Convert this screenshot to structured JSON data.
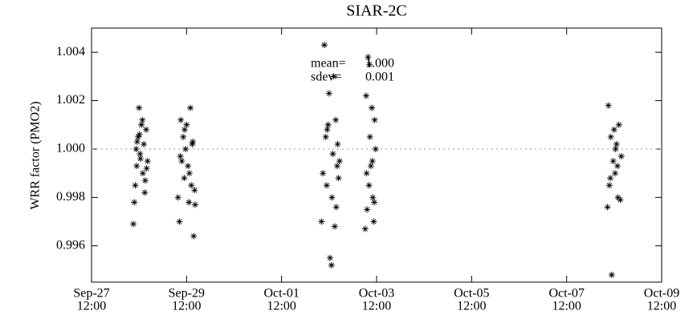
{
  "chart_data": {
    "type": "scatter",
    "title": "SIAR-2C",
    "y_label": "WRR factor (PMO2)",
    "annotations": [
      {
        "label": "mean=",
        "value": "1.000"
      },
      {
        "label": "sdev=",
        "value": "0.001"
      }
    ],
    "ref_line": 1.0,
    "color": "#000000",
    "xlim": [
      0,
      12
    ],
    "ylim": [
      0.9945,
      1.005
    ],
    "xticks": [
      {
        "value": 0,
        "label": [
          "Sep-27",
          "12:00"
        ]
      },
      {
        "value": 2,
        "label": [
          "Sep-29",
          "12:00"
        ]
      },
      {
        "value": 4,
        "label": [
          "Oct-01",
          "12:00"
        ]
      },
      {
        "value": 6,
        "label": [
          "Oct-03",
          "12:00"
        ]
      },
      {
        "value": 8,
        "label": [
          "Oct-05",
          "12:00"
        ]
      },
      {
        "value": 10,
        "label": [
          "Oct-07",
          "12:00"
        ]
      },
      {
        "value": 12,
        "label": [
          "Oct-09",
          "12:00"
        ]
      }
    ],
    "yticks": [
      0.996,
      0.998,
      {
        "value": 1.0,
        "label": "1.000"
      },
      1.002,
      1.004
    ],
    "x": [
      0.88,
      0.92,
      0.95,
      0.98,
      1.0,
      1.02,
      1.05,
      1.08,
      1.1,
      1.12,
      1.15,
      1.18,
      0.9,
      0.96,
      1.03,
      1.07,
      1.13,
      0.94,
      1.01,
      1.16,
      1.82,
      1.85,
      1.88,
      1.9,
      1.93,
      1.95,
      1.98,
      2.0,
      2.03,
      2.05,
      2.08,
      2.1,
      2.13,
      2.15,
      2.18,
      1.87,
      1.96,
      2.06,
      2.12,
      2.17,
      4.84,
      4.87,
      4.9,
      4.93,
      4.95,
      4.98,
      5.0,
      5.02,
      5.05,
      5.08,
      5.1,
      5.12,
      5.15,
      5.18,
      5.2,
      5.22,
      4.96,
      5.06,
      5.14,
      5.17,
      5.76,
      5.78,
      5.8,
      5.82,
      5.84,
      5.86,
      5.88,
      5.9,
      5.92,
      5.94,
      5.96,
      5.98,
      5.79,
      5.85,
      5.91,
      5.95,
      10.86,
      10.88,
      10.9,
      10.93,
      10.95,
      10.98,
      11.0,
      11.02,
      11.05,
      11.08,
      11.1,
      11.13,
      11.15,
      10.92,
      11.03,
      11.07
    ],
    "values": [
      0.9969,
      0.9985,
      0.9993,
      1.0005,
      1.0017,
      0.9998,
      1.001,
      0.999,
      1.0002,
      0.9982,
      1.0008,
      0.9995,
      0.9978,
      1.0003,
      0.9996,
      1.0012,
      0.9987,
      1.0,
      1.0006,
      0.9992,
      0.998,
      0.997,
      1.0012,
      0.9995,
      1.0005,
      0.9988,
      1.0,
      1.001,
      0.9993,
      0.9978,
      1.0017,
      0.9985,
      1.0003,
      0.9964,
      0.9977,
      0.9997,
      1.0008,
      0.999,
      1.0002,
      0.9983,
      0.997,
      0.999,
      1.0043,
      1.0005,
      0.9985,
      1.001,
      1.0023,
      0.9955,
      0.9952,
      0.9998,
      1.003,
      0.9968,
      0.9976,
      1.0002,
      0.9988,
      0.9995,
      1.0008,
      0.998,
      1.0012,
      0.9993,
      0.9967,
      1.0022,
      0.9975,
      1.0038,
      0.9985,
      1.0005,
      0.9993,
      1.0017,
      0.998,
      0.997,
      1.0012,
      1.0,
      0.999,
      1.0035,
      0.9995,
      0.9978,
      0.9976,
      1.0018,
      0.9985,
      1.0005,
      0.9948,
      0.9995,
      1.0008,
      0.999,
      1.0002,
      0.998,
      1.001,
      0.9979,
      0.9997,
      0.9988,
      1.0,
      0.9993
    ]
  }
}
